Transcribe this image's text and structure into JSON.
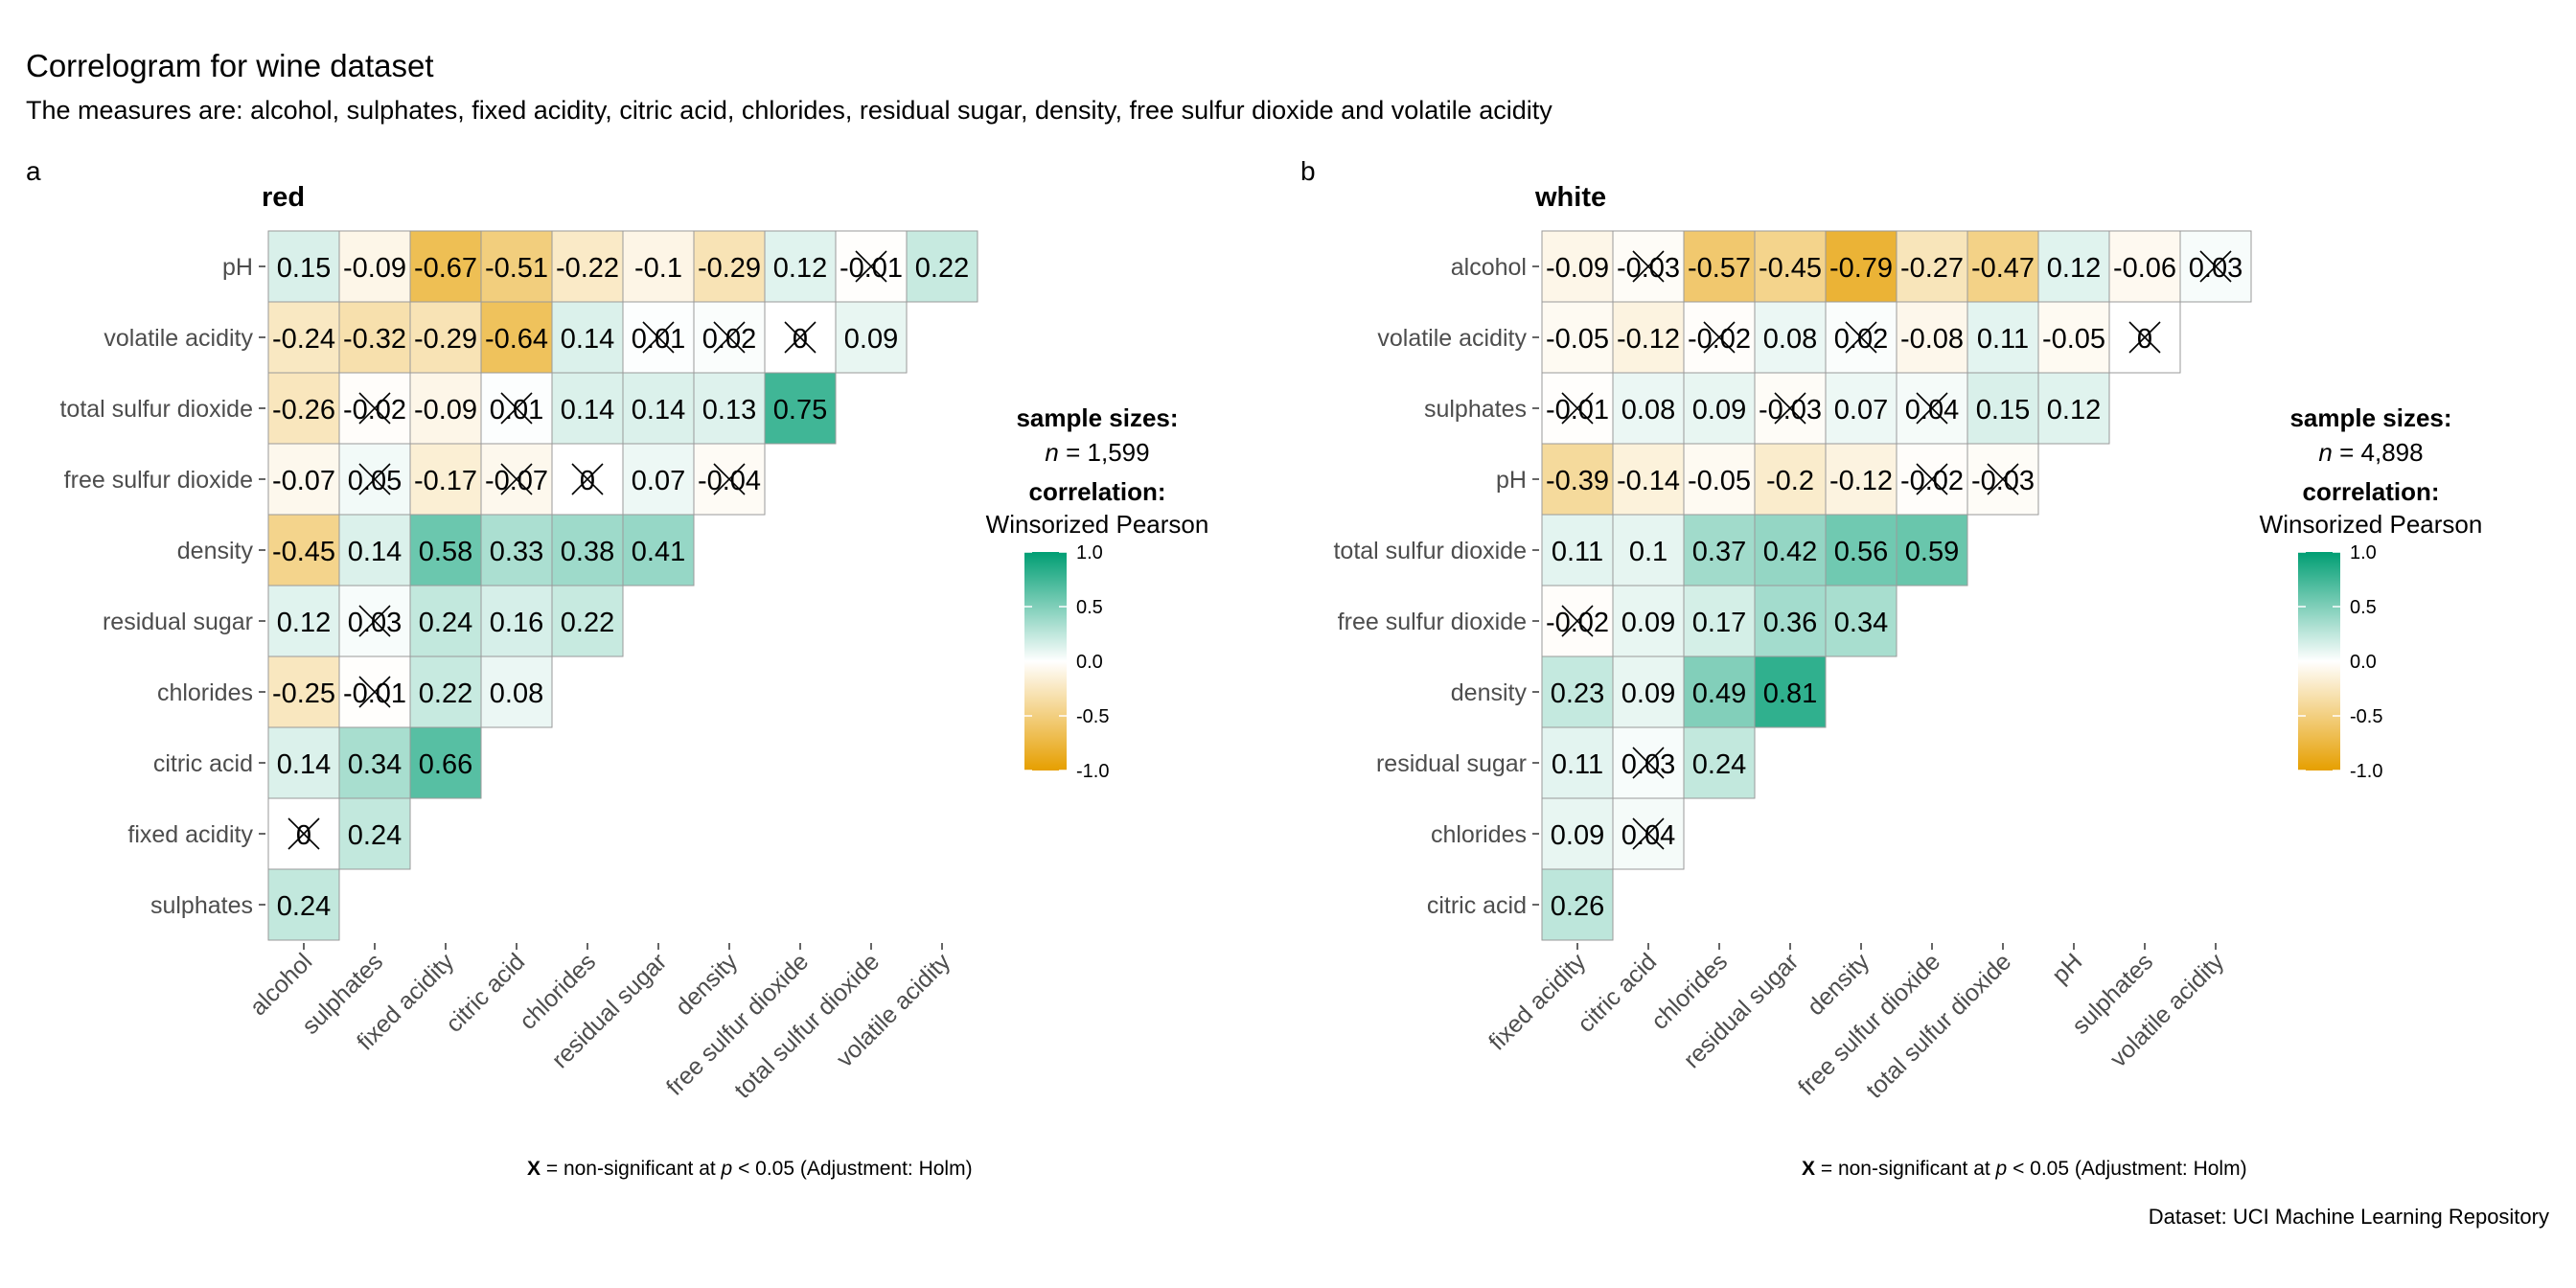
{
  "title": "Correlogram for wine dataset",
  "subtitle": "The measures are: alcohol, sulphates, fixed acidity, citric acid, chlorides, residual sugar, density, free sulfur dioxide and volatile acidity",
  "caption": "Dataset: UCI Machine Learning Repository",
  "colors": {
    "low": "#E69F00",
    "mid": "#FFFFFF",
    "high": "#009E73"
  },
  "chart_data": [
    {
      "type": "heatmap",
      "tag": "a",
      "title": "red",
      "rows": [
        "pH",
        "volatile acidity",
        "total sulfur dioxide",
        "free sulfur dioxide",
        "density",
        "residual sugar",
        "chlorides",
        "citric acid",
        "fixed acidity",
        "sulphates"
      ],
      "columns": [
        "alcohol",
        "sulphates",
        "fixed acidity",
        "citric acid",
        "chlorides",
        "residual sugar",
        "density",
        "free sulfur dioxide",
        "total sulfur dioxide",
        "volatile acidity"
      ],
      "labels": [
        [
          "0.15",
          "-0.09",
          "-0.67",
          "-0.51",
          "-0.22",
          "-0.1",
          "-0.29",
          "0.12",
          "-0.01",
          "0.22"
        ],
        [
          "-0.24",
          "-0.32",
          "-0.29",
          "-0.64",
          "0.14",
          "0.01",
          "0.02",
          "0",
          "0.09"
        ],
        [
          "-0.26",
          "-0.02",
          "-0.09",
          "0.01",
          "0.14",
          "0.14",
          "0.13",
          "0.75"
        ],
        [
          "-0.07",
          "0.05",
          "-0.17",
          "-0.07",
          "0",
          "0.07",
          "-0.04"
        ],
        [
          "-0.45",
          "0.14",
          "0.58",
          "0.33",
          "0.38",
          "0.41"
        ],
        [
          "0.12",
          "0.03",
          "0.24",
          "0.16",
          "0.22"
        ],
        [
          "-0.25",
          "-0.01",
          "0.22",
          "0.08"
        ],
        [
          "0.14",
          "0.34",
          "0.66"
        ],
        [
          "0",
          "0.24"
        ],
        [
          "0.24"
        ]
      ],
      "values": [
        [
          0.15,
          -0.09,
          -0.67,
          -0.51,
          -0.22,
          -0.1,
          -0.29,
          0.12,
          -0.01,
          0.22
        ],
        [
          -0.24,
          -0.32,
          -0.29,
          -0.64,
          0.14,
          0.01,
          0.02,
          0,
          0.09
        ],
        [
          -0.26,
          -0.02,
          -0.09,
          0.01,
          0.14,
          0.14,
          0.13,
          0.75
        ],
        [
          -0.07,
          0.05,
          -0.17,
          -0.07,
          0,
          0.07,
          -0.04
        ],
        [
          -0.45,
          0.14,
          0.58,
          0.33,
          0.38,
          0.41
        ],
        [
          0.12,
          0.03,
          0.24,
          0.16,
          0.22
        ],
        [
          -0.25,
          -0.01,
          0.22,
          0.08
        ],
        [
          0.14,
          0.34,
          0.66
        ],
        [
          0,
          0.24
        ],
        [
          0.24
        ]
      ],
      "nonsignificant": [
        [
          0,
          8
        ],
        [
          1,
          5
        ],
        [
          1,
          6
        ],
        [
          1,
          7
        ],
        [
          2,
          1
        ],
        [
          2,
          3
        ],
        [
          3,
          1
        ],
        [
          3,
          3
        ],
        [
          3,
          4
        ],
        [
          3,
          6
        ],
        [
          5,
          1
        ],
        [
          6,
          1
        ],
        [
          8,
          0
        ]
      ],
      "legend": {
        "title": "sample sizes:",
        "n_label": "n",
        "n_value": "= 1,599",
        "corr_title": "correlation:",
        "corr_type": "Winsorized Pearson",
        "ticks": [
          "1.0",
          "0.5",
          "0.0",
          "-0.5",
          "-1.0"
        ],
        "range": [
          -1,
          1
        ]
      },
      "footnote": {
        "mark": "X",
        "text1": " = non-significant at ",
        "p": "p",
        "text2": " < 0.05 (Adjustment: Holm)"
      }
    },
    {
      "type": "heatmap",
      "tag": "b",
      "title": "white",
      "rows": [
        "alcohol",
        "volatile acidity",
        "sulphates",
        "pH",
        "total sulfur dioxide",
        "free sulfur dioxide",
        "density",
        "residual sugar",
        "chlorides",
        "citric acid"
      ],
      "columns": [
        "fixed acidity",
        "citric acid",
        "chlorides",
        "residual sugar",
        "density",
        "free sulfur dioxide",
        "total sulfur dioxide",
        "pH",
        "sulphates",
        "volatile acidity"
      ],
      "labels": [
        [
          "-0.09",
          "-0.03",
          "-0.57",
          "-0.45",
          "-0.79",
          "-0.27",
          "-0.47",
          "0.12",
          "-0.06",
          "0.03"
        ],
        [
          "-0.05",
          "-0.12",
          "-0.02",
          "0.08",
          "0.02",
          "-0.08",
          "0.11",
          "-0.05",
          "0"
        ],
        [
          "-0.01",
          "0.08",
          "0.09",
          "-0.03",
          "0.07",
          "0.04",
          "0.15",
          "0.12"
        ],
        [
          "-0.39",
          "-0.14",
          "-0.05",
          "-0.2",
          "-0.12",
          "-0.02",
          "-0.03"
        ],
        [
          "0.11",
          "0.1",
          "0.37",
          "0.42",
          "0.56",
          "0.59"
        ],
        [
          "-0.02",
          "0.09",
          "0.17",
          "0.36",
          "0.34"
        ],
        [
          "0.23",
          "0.09",
          "0.49",
          "0.81"
        ],
        [
          "0.11",
          "0.03",
          "0.24"
        ],
        [
          "0.09",
          "0.04"
        ],
        [
          "0.26"
        ]
      ],
      "values": [
        [
          -0.09,
          -0.03,
          -0.57,
          -0.45,
          -0.79,
          -0.27,
          -0.47,
          0.12,
          -0.06,
          0.03
        ],
        [
          -0.05,
          -0.12,
          -0.02,
          0.08,
          0.02,
          -0.08,
          0.11,
          -0.05,
          0
        ],
        [
          -0.01,
          0.08,
          0.09,
          -0.03,
          0.07,
          0.04,
          0.15,
          0.12
        ],
        [
          -0.39,
          -0.14,
          -0.05,
          -0.2,
          -0.12,
          -0.02,
          -0.03
        ],
        [
          0.11,
          0.1,
          0.37,
          0.42,
          0.56,
          0.59
        ],
        [
          -0.02,
          0.09,
          0.17,
          0.36,
          0.34
        ],
        [
          0.23,
          0.09,
          0.49,
          0.81
        ],
        [
          0.11,
          0.03,
          0.24
        ],
        [
          0.09,
          0.04
        ],
        [
          0.26
        ]
      ],
      "nonsignificant": [
        [
          0,
          1
        ],
        [
          0,
          9
        ],
        [
          1,
          2
        ],
        [
          1,
          4
        ],
        [
          1,
          8
        ],
        [
          2,
          0
        ],
        [
          2,
          3
        ],
        [
          2,
          5
        ],
        [
          3,
          5
        ],
        [
          3,
          6
        ],
        [
          5,
          0
        ],
        [
          7,
          1
        ],
        [
          8,
          1
        ]
      ],
      "legend": {
        "title": "sample sizes:",
        "n_label": "n",
        "n_value": "= 4,898",
        "corr_title": "correlation:",
        "corr_type": "Winsorized Pearson",
        "ticks": [
          "1.0",
          "0.5",
          "0.0",
          "-0.5",
          "-1.0"
        ],
        "range": [
          -1,
          1
        ]
      },
      "footnote": {
        "mark": "X",
        "text1": " = non-significant at ",
        "p": "p",
        "text2": " < 0.05 (Adjustment: Holm)"
      }
    }
  ]
}
